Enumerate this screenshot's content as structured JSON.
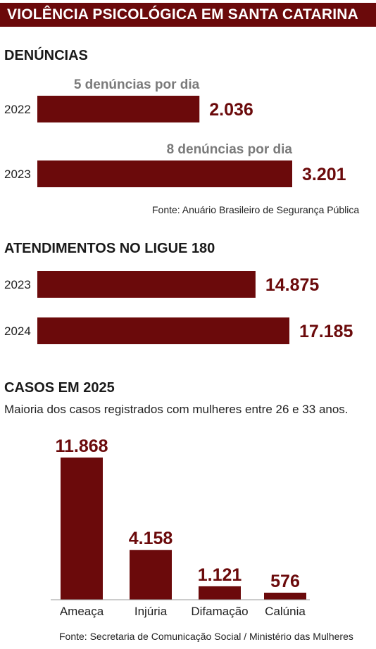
{
  "title": "VIOLÊNCIA PSICOLÓGICA EM SANTA CATARINA",
  "accent_color": "#6b0a0b",
  "note_color": "#7a7a7a",
  "sources": {
    "denuncias": "Fonte: Anuário Brasileiro de Segurança Pública",
    "casos": "Fonte: Secretaria de Comunicação Social / Ministério das Mulheres"
  },
  "casos_subtitle": "Maioria dos casos registrados com mulheres entre 26 e 33 anos.",
  "chart_data": [
    {
      "type": "bar",
      "orientation": "horizontal",
      "title": "DENÚNCIAS",
      "categories": [
        "2022",
        "2023"
      ],
      "values": [
        2036,
        3201
      ],
      "value_labels": [
        "2.036",
        "3.201"
      ],
      "annotations": [
        "5 denúncias por dia",
        "8 denúncias por dia"
      ],
      "xlim": [
        0,
        3201
      ]
    },
    {
      "type": "bar",
      "orientation": "horizontal",
      "title": "ATENDIMENTOS NO LIGUE 180",
      "categories": [
        "2023",
        "2024"
      ],
      "values": [
        14875,
        17185
      ],
      "value_labels": [
        "14.875",
        "17.185"
      ],
      "xlim": [
        0,
        17185
      ]
    },
    {
      "type": "bar",
      "orientation": "vertical",
      "title": "CASOS EM 2025",
      "categories": [
        "Ameaça",
        "Injúria",
        "Difamação",
        "Calúnia"
      ],
      "values": [
        11868,
        4158,
        1121,
        576
      ],
      "value_labels": [
        "11.868",
        "4.158",
        "1.121",
        "576"
      ],
      "ylim": [
        0,
        11868
      ]
    }
  ]
}
